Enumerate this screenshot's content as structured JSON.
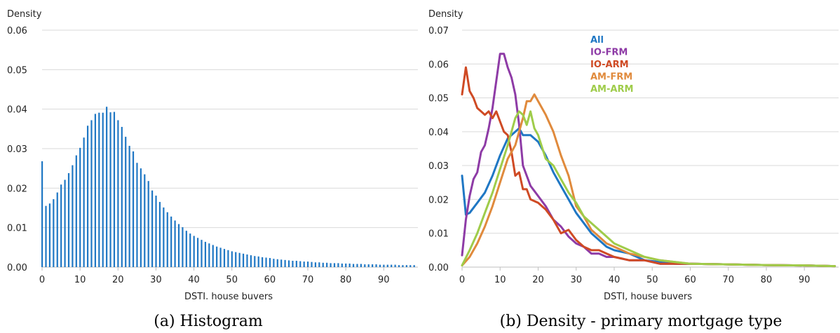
{
  "chart_data": [
    {
      "type": "bar",
      "caption": "(a) Histogram",
      "ylabel": "Density",
      "xlabel": "DSTI. house buvers",
      "xlim": [
        0,
        99
      ],
      "ylim": [
        0,
        0.06
      ],
      "yticks": [
        "0.00",
        "0.01",
        "0.02",
        "0.03",
        "0.04",
        "0.05",
        "0.06"
      ],
      "xticks": [
        "0",
        "10",
        "20",
        "30",
        "40",
        "50",
        "60",
        "70",
        "80",
        "90"
      ],
      "grid": true,
      "bar_color": "#1f77c4",
      "x": [
        0,
        1,
        2,
        3,
        4,
        5,
        6,
        7,
        8,
        9,
        10,
        11,
        12,
        13,
        14,
        15,
        16,
        17,
        18,
        19,
        20,
        21,
        22,
        23,
        24,
        25,
        26,
        27,
        28,
        29,
        30,
        31,
        32,
        33,
        34,
        35,
        36,
        37,
        38,
        39,
        40,
        41,
        42,
        43,
        44,
        45,
        46,
        47,
        48,
        49,
        50,
        51,
        52,
        53,
        54,
        55,
        56,
        57,
        58,
        59,
        60,
        61,
        62,
        63,
        64,
        65,
        66,
        67,
        68,
        69,
        70,
        71,
        72,
        73,
        74,
        75,
        76,
        77,
        78,
        79,
        80,
        81,
        82,
        83,
        84,
        85,
        86,
        87,
        88,
        89,
        90,
        91,
        92,
        93,
        94,
        95,
        96,
        97,
        98
      ],
      "values": [
        0.0268,
        0.0155,
        0.0161,
        0.0172,
        0.0189,
        0.0209,
        0.0221,
        0.0238,
        0.0258,
        0.0283,
        0.0302,
        0.0328,
        0.0358,
        0.0372,
        0.0388,
        0.0391,
        0.0391,
        0.0406,
        0.0392,
        0.0393,
        0.0372,
        0.0355,
        0.033,
        0.0307,
        0.0293,
        0.0264,
        0.025,
        0.0235,
        0.0218,
        0.0194,
        0.0181,
        0.0165,
        0.0151,
        0.0139,
        0.0128,
        0.0118,
        0.0109,
        0.0101,
        0.0092,
        0.0085,
        0.0079,
        0.0074,
        0.0069,
        0.0064,
        0.006,
        0.0056,
        0.0052,
        0.0049,
        0.0046,
        0.0043,
        0.004,
        0.0038,
        0.0036,
        0.0034,
        0.0032,
        0.003,
        0.0028,
        0.0027,
        0.0025,
        0.0024,
        0.0023,
        0.0021,
        0.002,
        0.0019,
        0.0018,
        0.0017,
        0.0016,
        0.0016,
        0.0015,
        0.0014,
        0.0014,
        0.0013,
        0.0012,
        0.0012,
        0.0011,
        0.0011,
        0.001,
        0.001,
        0.001,
        0.0009,
        0.0009,
        0.0009,
        0.0008,
        0.0008,
        0.0008,
        0.0007,
        0.0007,
        0.0007,
        0.0007,
        0.0006,
        0.0006,
        0.0006,
        0.0006,
        0.0006,
        0.0005,
        0.0005,
        0.0005,
        0.0005,
        0.0005
      ]
    },
    {
      "type": "line",
      "caption": "(b) Density - primary mortgage type",
      "ylabel": "Density",
      "xlabel": "DSTI, house buvers",
      "xlim": [
        0,
        99
      ],
      "ylim": [
        0,
        0.07
      ],
      "yticks": [
        "0.00",
        "0.01",
        "0.02",
        "0.03",
        "0.04",
        "0.05",
        "0.06",
        "0.07"
      ],
      "xticks": [
        "0",
        "10",
        "20",
        "30",
        "40",
        "50",
        "60",
        "70",
        "80",
        "90"
      ],
      "grid": true,
      "legend_position": "top-center",
      "series": [
        {
          "name": "All",
          "color": "#1f77c4",
          "x": [
            0,
            1,
            2,
            4,
            6,
            8,
            10,
            12,
            14,
            15,
            16,
            18,
            20,
            22,
            24,
            26,
            28,
            30,
            32,
            34,
            36,
            38,
            40,
            44,
            48,
            52,
            56,
            60,
            70,
            80,
            90,
            98
          ],
          "y": [
            0.027,
            0.0155,
            0.016,
            0.019,
            0.022,
            0.027,
            0.033,
            0.038,
            0.04,
            0.041,
            0.039,
            0.039,
            0.037,
            0.033,
            0.028,
            0.024,
            0.02,
            0.016,
            0.013,
            0.01,
            0.008,
            0.006,
            0.005,
            0.004,
            0.002,
            0.0015,
            0.001,
            0.001,
            0.0008,
            0.0006,
            0.0005,
            0.0003
          ]
        },
        {
          "name": "IO-FRM",
          "color": "#8e3ba6",
          "x": [
            0,
            1,
            2,
            3,
            4,
            5,
            6,
            7,
            8,
            9,
            10,
            11,
            12,
            13,
            14,
            15,
            16,
            17,
            18,
            20,
            22,
            24,
            26,
            28,
            30,
            32,
            34,
            36,
            38,
            40,
            44,
            48,
            52,
            56,
            60,
            70,
            80,
            90,
            98
          ],
          "y": [
            0.0035,
            0.014,
            0.021,
            0.026,
            0.028,
            0.034,
            0.036,
            0.041,
            0.047,
            0.055,
            0.063,
            0.063,
            0.059,
            0.056,
            0.051,
            0.042,
            0.03,
            0.027,
            0.024,
            0.021,
            0.018,
            0.014,
            0.012,
            0.009,
            0.007,
            0.006,
            0.004,
            0.004,
            0.003,
            0.003,
            0.002,
            0.002,
            0.001,
            0.001,
            0.001,
            0.0008,
            0.0006,
            0.0005,
            0.0003
          ]
        },
        {
          "name": "IO-ARM",
          "color": "#cf4a24",
          "x": [
            0,
            1,
            2,
            3,
            4,
            5,
            6,
            7,
            8,
            9,
            10,
            11,
            12,
            13,
            14,
            15,
            16,
            17,
            18,
            20,
            22,
            24,
            26,
            28,
            30,
            32,
            34,
            36,
            38,
            40,
            44,
            48,
            52,
            56,
            60,
            70,
            80,
            90,
            98
          ],
          "y": [
            0.051,
            0.059,
            0.052,
            0.05,
            0.047,
            0.046,
            0.045,
            0.046,
            0.044,
            0.046,
            0.043,
            0.04,
            0.039,
            0.034,
            0.027,
            0.028,
            0.023,
            0.023,
            0.02,
            0.019,
            0.017,
            0.014,
            0.01,
            0.011,
            0.008,
            0.006,
            0.005,
            0.005,
            0.004,
            0.003,
            0.002,
            0.002,
            0.001,
            0.001,
            0.001,
            0.0008,
            0.0006,
            0.0005,
            0.0003
          ]
        },
        {
          "name": "AM-FRM",
          "color": "#e08a3c",
          "x": [
            0,
            2,
            4,
            6,
            8,
            10,
            12,
            14,
            16,
            17,
            18,
            19,
            20,
            22,
            24,
            26,
            28,
            30,
            32,
            34,
            36,
            38,
            40,
            44,
            48,
            52,
            56,
            60,
            70,
            80,
            90,
            98
          ],
          "y": [
            0.0005,
            0.003,
            0.007,
            0.012,
            0.018,
            0.025,
            0.032,
            0.036,
            0.044,
            0.049,
            0.049,
            0.051,
            0.049,
            0.045,
            0.04,
            0.033,
            0.027,
            0.018,
            0.015,
            0.011,
            0.009,
            0.007,
            0.006,
            0.004,
            0.003,
            0.002,
            0.0015,
            0.001,
            0.0008,
            0.0006,
            0.0005,
            0.0003
          ]
        },
        {
          "name": "AM-ARM",
          "color": "#9fcc4a",
          "x": [
            0,
            2,
            4,
            6,
            8,
            10,
            12,
            14,
            15,
            16,
            17,
            18,
            19,
            20,
            22,
            24,
            26,
            28,
            30,
            32,
            34,
            36,
            38,
            40,
            44,
            48,
            52,
            56,
            60,
            70,
            80,
            90,
            98
          ],
          "y": [
            0.0005,
            0.005,
            0.01,
            0.016,
            0.022,
            0.029,
            0.036,
            0.044,
            0.046,
            0.045,
            0.042,
            0.046,
            0.041,
            0.039,
            0.032,
            0.03,
            0.026,
            0.022,
            0.019,
            0.015,
            0.013,
            0.011,
            0.009,
            0.007,
            0.005,
            0.003,
            0.002,
            0.0015,
            0.001,
            0.0008,
            0.0006,
            0.0005,
            0.0003
          ]
        }
      ]
    }
  ]
}
